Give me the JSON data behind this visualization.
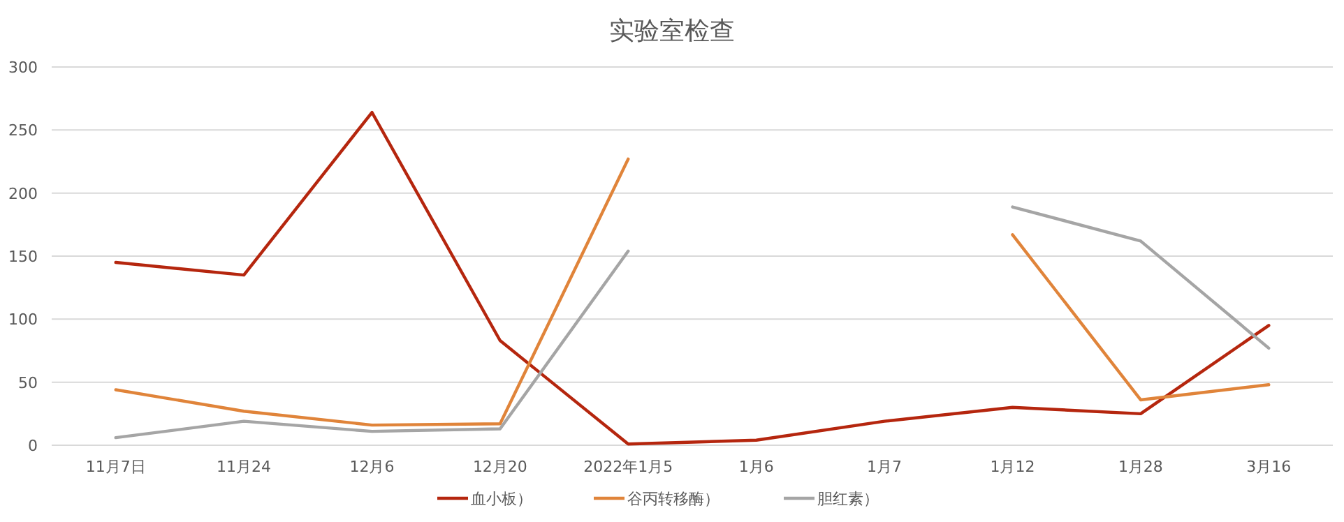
{
  "chart_data": {
    "type": "line",
    "title": "实验室检查",
    "categories": [
      "11月7日",
      "11月24",
      "12月6",
      "12月20",
      "2022年1月5",
      "1月6",
      "1月7",
      "1月12",
      "1月28",
      "3月16"
    ],
    "series": [
      {
        "name": "血小板）",
        "color": "#b5260e",
        "values": [
          145,
          135,
          264,
          83,
          1,
          4,
          19,
          30,
          25,
          95
        ]
      },
      {
        "name": "谷丙转移酶）",
        "color": "#e0843a",
        "values": [
          44,
          27,
          16,
          17,
          227,
          null,
          null,
          167,
          36,
          48
        ]
      },
      {
        "name": "胆红素）",
        "color": "#a5a5a5",
        "values": [
          6,
          19,
          11,
          13,
          154,
          null,
          null,
          189,
          162,
          77
        ]
      }
    ],
    "ylim": [
      0,
      300
    ],
    "yticks": [
      0,
      50,
      100,
      150,
      200,
      250,
      300
    ],
    "grid": "y",
    "legend": "bottom",
    "marker": "none",
    "line_style": "solid"
  }
}
